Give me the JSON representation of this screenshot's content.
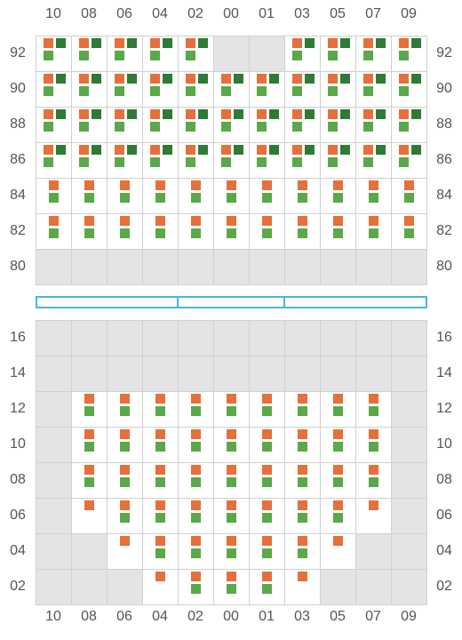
{
  "columns": [
    "10",
    "08",
    "06",
    "04",
    "02",
    "00",
    "01",
    "03",
    "05",
    "07",
    "09"
  ],
  "top_rows": [
    "92",
    "90",
    "88",
    "86",
    "84",
    "82",
    "80"
  ],
  "bottom_rows": [
    "16",
    "14",
    "12",
    "10",
    "08",
    "06",
    "04",
    "02"
  ],
  "colors": {
    "orange": "#e5703a",
    "light_green": "#5aa84a",
    "dark_green": "#2f7a36",
    "inactive": "#e4e4e6",
    "divider": "#49b4de"
  },
  "legend_codes": {
    "F": "orange + light green + dark green",
    "B": "orange + light green",
    "O": "orange only",
    "X": "inactive cell",
    "E": "empty cell"
  },
  "top_grid": [
    "FFFFFXXFFFF",
    "FFFFFFFFFFF",
    "FFFFFFFFFFF",
    "FFFFFFFFFFF",
    "BBBBBBBBBBB",
    "BBBBBBBBBBB",
    "XXXXXXXXXXX"
  ],
  "bottom_grid": [
    "XXXXXXXXXXX",
    "XXXXXXXXXXX",
    "XBBBBBBBBBX",
    "XBBBBBBBBBX",
    "XBBBBBBBBBX",
    "XOBBBBBBBOX",
    "XXOBBBBBOXX",
    "XXXOBBBOXXX"
  ]
}
